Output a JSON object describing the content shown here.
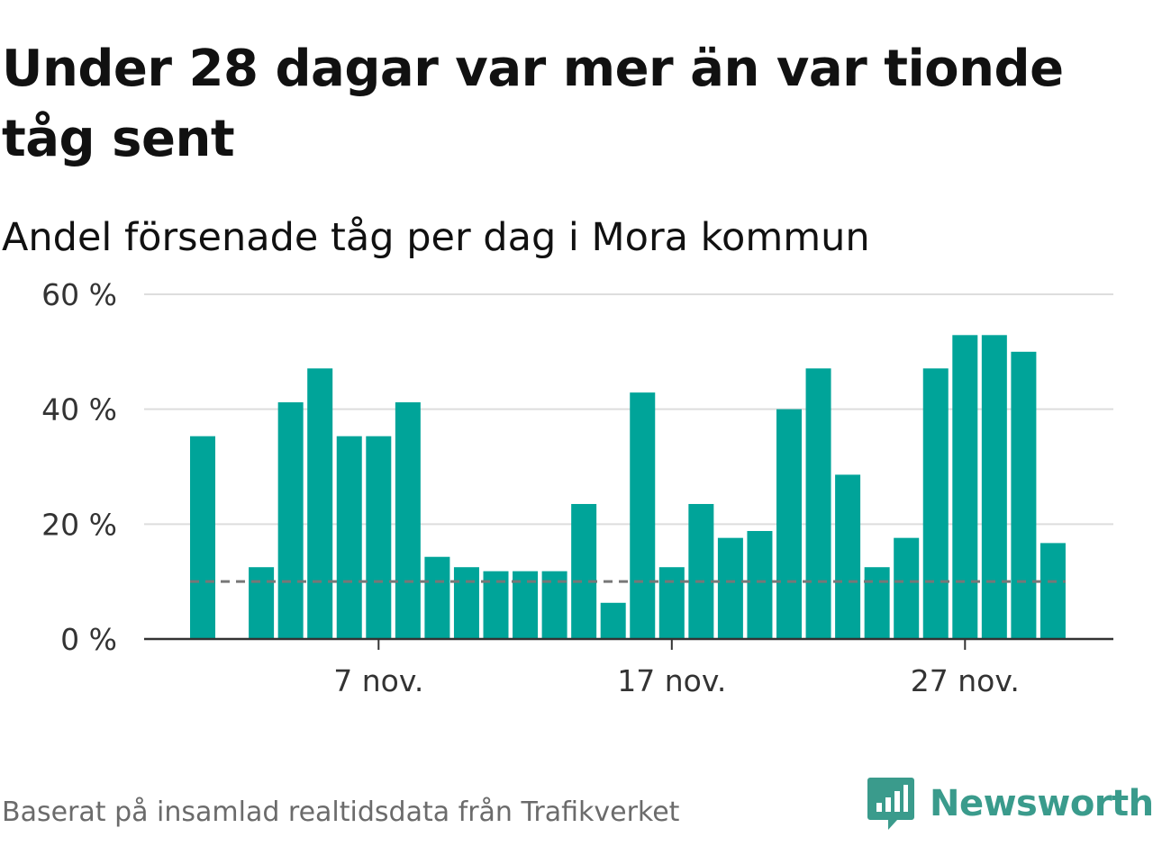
{
  "title": "Under 28 dagar var mer än var tionde tåg sent",
  "subtitle": "Andel försenade tåg per dag i Mora kommun",
  "source": "Baserat på insamlad realtidsdata från Trafikverket",
  "brand": {
    "name": "Newsworthy",
    "icon": "newsworthy-logo-icon",
    "color": "#3a9b8c"
  },
  "colors": {
    "bar": "#00a499",
    "reference_line": "#777777",
    "grid": "#dddddd",
    "axis": "#333333"
  },
  "chart_data": {
    "type": "bar",
    "x": [
      "1 nov.",
      "2 nov.",
      "3 nov.",
      "4 nov.",
      "5 nov.",
      "6 nov.",
      "7 nov.",
      "8 nov.",
      "9 nov.",
      "10 nov.",
      "11 nov.",
      "12 nov.",
      "13 nov.",
      "14 nov.",
      "15 nov.",
      "16 nov.",
      "17 nov.",
      "18 nov.",
      "19 nov.",
      "20 nov.",
      "21 nov.",
      "22 nov.",
      "23 nov.",
      "24 nov.",
      "25 nov.",
      "26 nov.",
      "27 nov.",
      "28 nov.",
      "29 nov.",
      "30 nov."
    ],
    "values": [
      35.3,
      null,
      12.5,
      41.2,
      47.1,
      35.3,
      35.3,
      41.2,
      14.3,
      12.5,
      11.8,
      11.8,
      11.8,
      23.5,
      6.3,
      42.9,
      12.5,
      23.5,
      17.6,
      18.8,
      40.0,
      47.1,
      28.6,
      12.5,
      17.6,
      47.1,
      52.9,
      52.9,
      50.0,
      16.7
    ],
    "reference_value": 10,
    "ylim": [
      0,
      60
    ],
    "yticks": [
      0,
      20,
      40,
      60
    ],
    "ytick_labels": [
      "0 %",
      "20 %",
      "40 %",
      "60 %"
    ],
    "xtick_labels": [
      {
        "label": "7 nov.",
        "index": 6
      },
      {
        "label": "17 nov.",
        "index": 16
      },
      {
        "label": "27 nov.",
        "index": 26
      }
    ],
    "xlabel": "",
    "ylabel": "",
    "grid": true
  }
}
